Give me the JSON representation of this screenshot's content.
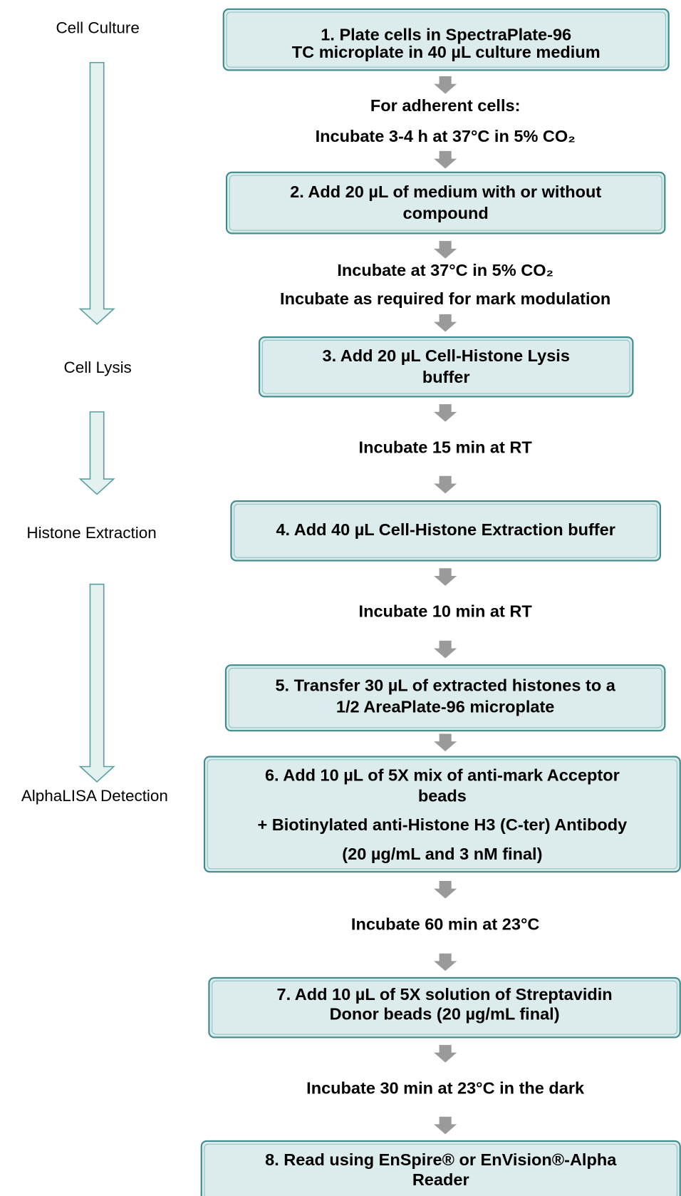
{
  "stages": [
    {
      "label": "Cell Culture"
    },
    {
      "label": "Cell Lysis"
    },
    {
      "label": "Histone Extraction"
    },
    {
      "label": "AlphaLISA Detection"
    }
  ],
  "steps": [
    {
      "lines": [
        "1. Plate cells in SpectraPlate-96",
        "TC microplate in 40 µL culture medium"
      ]
    },
    {
      "lines": [
        "2. Add 20 µL of medium with or without",
        "compound"
      ]
    },
    {
      "lines": [
        "3. Add 20 µL Cell-Histone Lysis",
        "buffer"
      ]
    },
    {
      "lines": [
        "4. Add 40 µL Cell-Histone Extraction buffer"
      ]
    },
    {
      "lines": [
        "5. Transfer 30 µL of extracted histones to a",
        "1/2 AreaPlate-96 microplate"
      ]
    },
    {
      "lines": [
        "6. Add 10 µL of 5X mix of anti-mark Acceptor",
        "beads",
        "+ Biotinylated anti-Histone H3 (C-ter) Antibody",
        "(20 µg/mL and 3 nM final)"
      ]
    },
    {
      "lines": [
        "7. Add 10 µL of 5X solution of Streptavidin",
        "Donor beads (20 µg/mL final)"
      ]
    },
    {
      "lines": [
        "8. Read using EnSpire® or EnVision®-Alpha",
        "Reader"
      ]
    }
  ],
  "incubations": [
    {
      "lines": [
        "For adherent cells:",
        "Incubate 3-4 h at 37°C in 5% CO₂"
      ]
    },
    {
      "lines": [
        "Incubate at 37°C in 5% CO₂",
        "Incubate as required for mark modulation"
      ]
    },
    {
      "lines": [
        "Incubate 15 min at RT"
      ]
    },
    {
      "lines": [
        "Incubate 10 min at RT"
      ]
    },
    {
      "lines": [
        "Incubate 60 min at 23°C"
      ]
    },
    {
      "lines": [
        "Incubate 30 min at 23°C in the dark"
      ]
    }
  ]
}
